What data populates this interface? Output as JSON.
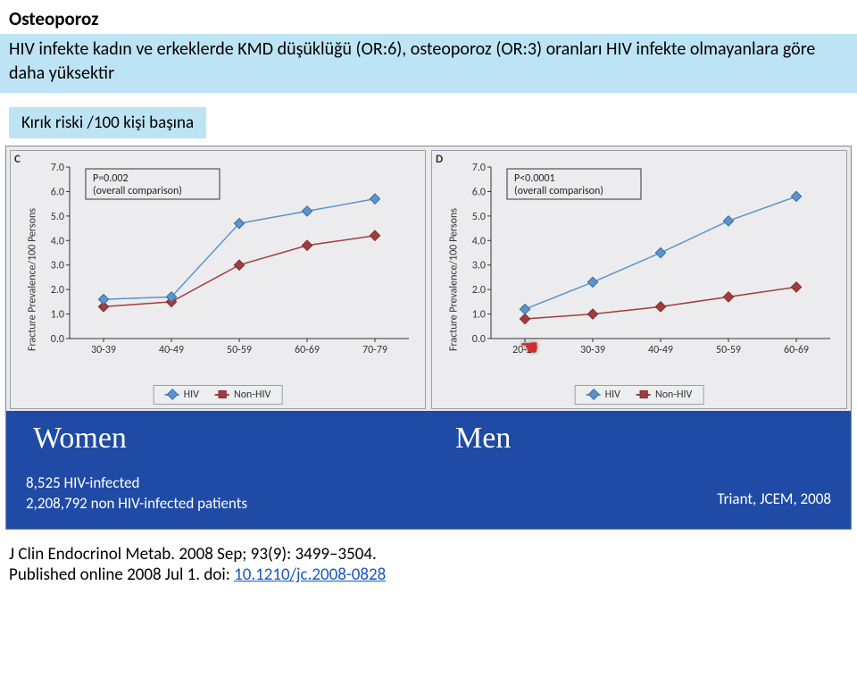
{
  "header": {
    "title": "Osteoporoz",
    "subtitle": "HIV infekte kadın ve erkeklerde KMD düşüklüğü (OR:6), osteoporoz (OR:3) oranları HIV infekte olmayanlara göre daha yüksektir"
  },
  "risk_label": "Kırık riski /100 kişi başına",
  "charts": {
    "y_label": "Fracture Prevalence/100 Persons",
    "ylim": [
      0,
      7
    ],
    "y_ticks": [
      0.0,
      1.0,
      2.0,
      3.0,
      4.0,
      5.0,
      6.0,
      7.0
    ],
    "legend": {
      "hiv": "HIV",
      "non": "Non-HIV"
    },
    "colors": {
      "hiv": "#5c93cc",
      "non": "#a33d3d",
      "axis": "#333333",
      "bg": "#ececee"
    },
    "women": {
      "panel_letter": "C",
      "p_text1": "P=0.002",
      "p_text2": "(overall comparison)",
      "x_labels": [
        "30-39",
        "40-49",
        "50-59",
        "60-69",
        "70-79"
      ],
      "hiv": [
        1.6,
        1.7,
        4.7,
        5.2,
        5.7
      ],
      "non": [
        1.3,
        1.5,
        3.0,
        3.8,
        4.2
      ]
    },
    "men": {
      "panel_letter": "D",
      "p_text1": "P<0.0001",
      "p_text2": "(overall comparison)",
      "x_labels": [
        "20-29",
        "30-39",
        "40-49",
        "50-59",
        "60-69"
      ],
      "hiv": [
        1.2,
        2.3,
        3.5,
        4.8,
        5.8
      ],
      "non": [
        0.8,
        1.0,
        1.3,
        1.7,
        2.1
      ],
      "cursor_at_x_index": 0
    }
  },
  "group_labels": {
    "women": "Women",
    "men": "Men"
  },
  "footer": {
    "left1": "8,525 HIV-infected",
    "left2": "2,208,792 non HIV-infected patients",
    "right": "Triant, JCEM, 2008"
  },
  "citation": {
    "text1": "J Clin Endocrinol Metab. 2008 Sep; 93(9): 3499–3504.",
    "text2a": "Published online 2008 Jul 1. doi: ",
    "doi": "10.1210/jc.2008-0828"
  }
}
